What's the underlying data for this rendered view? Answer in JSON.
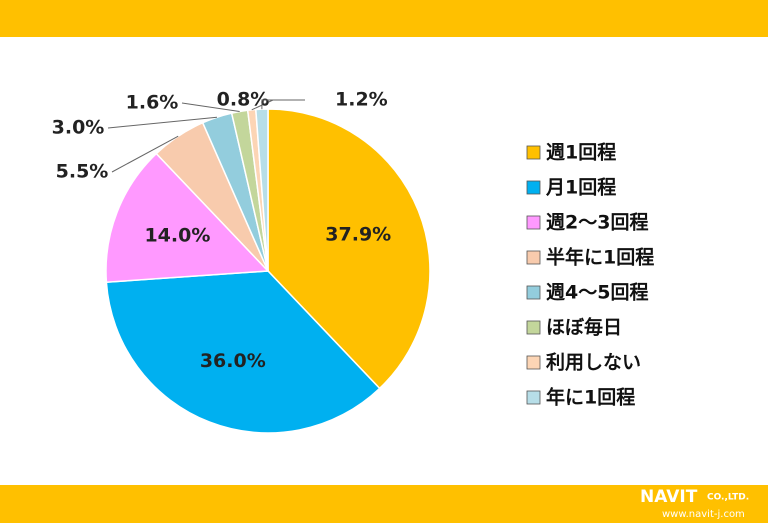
{
  "chart_data": {
    "type": "pie",
    "categories": [
      "週1回程",
      "月1回程",
      "週2～3回程",
      "半年に1回程",
      "週4～5回程",
      "ほぼ毎日",
      "利用しない",
      "年に1回程"
    ],
    "values": [
      37.9,
      36.0,
      14.0,
      5.5,
      3.0,
      1.6,
      0.8,
      1.2
    ],
    "value_labels": [
      "37.9%",
      "36.0%",
      "14.0%",
      "5.5%",
      "3.0%",
      "1.6%",
      "0.8%",
      "1.2%"
    ],
    "colors": [
      "#FFC000",
      "#00B0F0",
      "#FF99FF",
      "#F8CBAD",
      "#93CDDD",
      "#C3D69B",
      "#FCD5B5",
      "#B7DEE8"
    ],
    "legend": "right"
  },
  "footer": {
    "company": "NAVIT",
    "suffix": "CO.,LTD.",
    "url": "www.navit-j.com"
  }
}
